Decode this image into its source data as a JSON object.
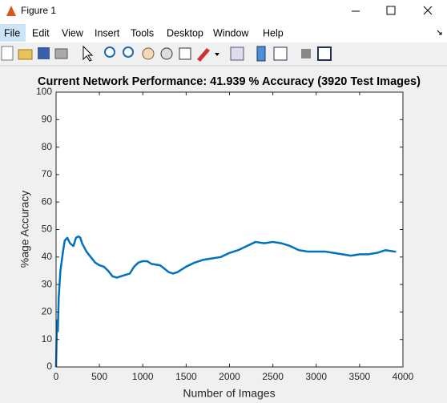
{
  "window": {
    "title": "Figure 1",
    "menu": [
      "File",
      "Edit",
      "View",
      "Insert",
      "Tools",
      "Desktop",
      "Window",
      "Help"
    ]
  },
  "chart_data": {
    "type": "line",
    "title": "Current Network Performance: 41.939 % Accuracy (3920 Test Images)",
    "x_label": "Number of Images",
    "y_label": "%age Accuracy",
    "x": [
      0,
      10,
      20,
      30,
      50,
      80,
      100,
      130,
      160,
      200,
      230,
      260,
      280,
      300,
      350,
      400,
      450,
      500,
      550,
      600,
      650,
      700,
      750,
      800,
      850,
      900,
      950,
      1000,
      1050,
      1100,
      1200,
      1300,
      1350,
      1400,
      1500,
      1600,
      1700,
      1800,
      1900,
      2000,
      2100,
      2200,
      2300,
      2400,
      2500,
      2600,
      2700,
      2800,
      2900,
      3000,
      3100,
      3200,
      3300,
      3400,
      3500,
      3600,
      3700,
      3800,
      3900,
      3920
    ],
    "values": [
      0,
      17,
      13,
      25,
      35,
      42,
      46,
      47,
      45,
      44,
      47,
      47.5,
      47,
      45,
      42,
      40,
      38,
      37,
      36.5,
      35,
      33,
      32.5,
      33,
      33.5,
      34,
      36.5,
      38,
      38.5,
      38.5,
      37.5,
      37,
      34.5,
      34,
      34.5,
      36.5,
      38,
      39,
      39.5,
      40,
      41.5,
      42.5,
      44,
      45.5,
      45,
      45.5,
      45,
      44,
      42.5,
      42,
      42,
      42,
      41.5,
      41,
      40.5,
      41,
      41,
      41.5,
      42.5,
      42,
      41.939
    ],
    "color": "#0072bd",
    "xlim": [
      0,
      4000
    ],
    "xticks": [
      0,
      500,
      1000,
      1500,
      2000,
      2500,
      3000,
      3500,
      4000
    ],
    "ylim": [
      0,
      100
    ],
    "yticks": [
      0,
      10,
      20,
      30,
      40,
      50,
      60,
      70,
      80,
      90,
      100
    ]
  }
}
